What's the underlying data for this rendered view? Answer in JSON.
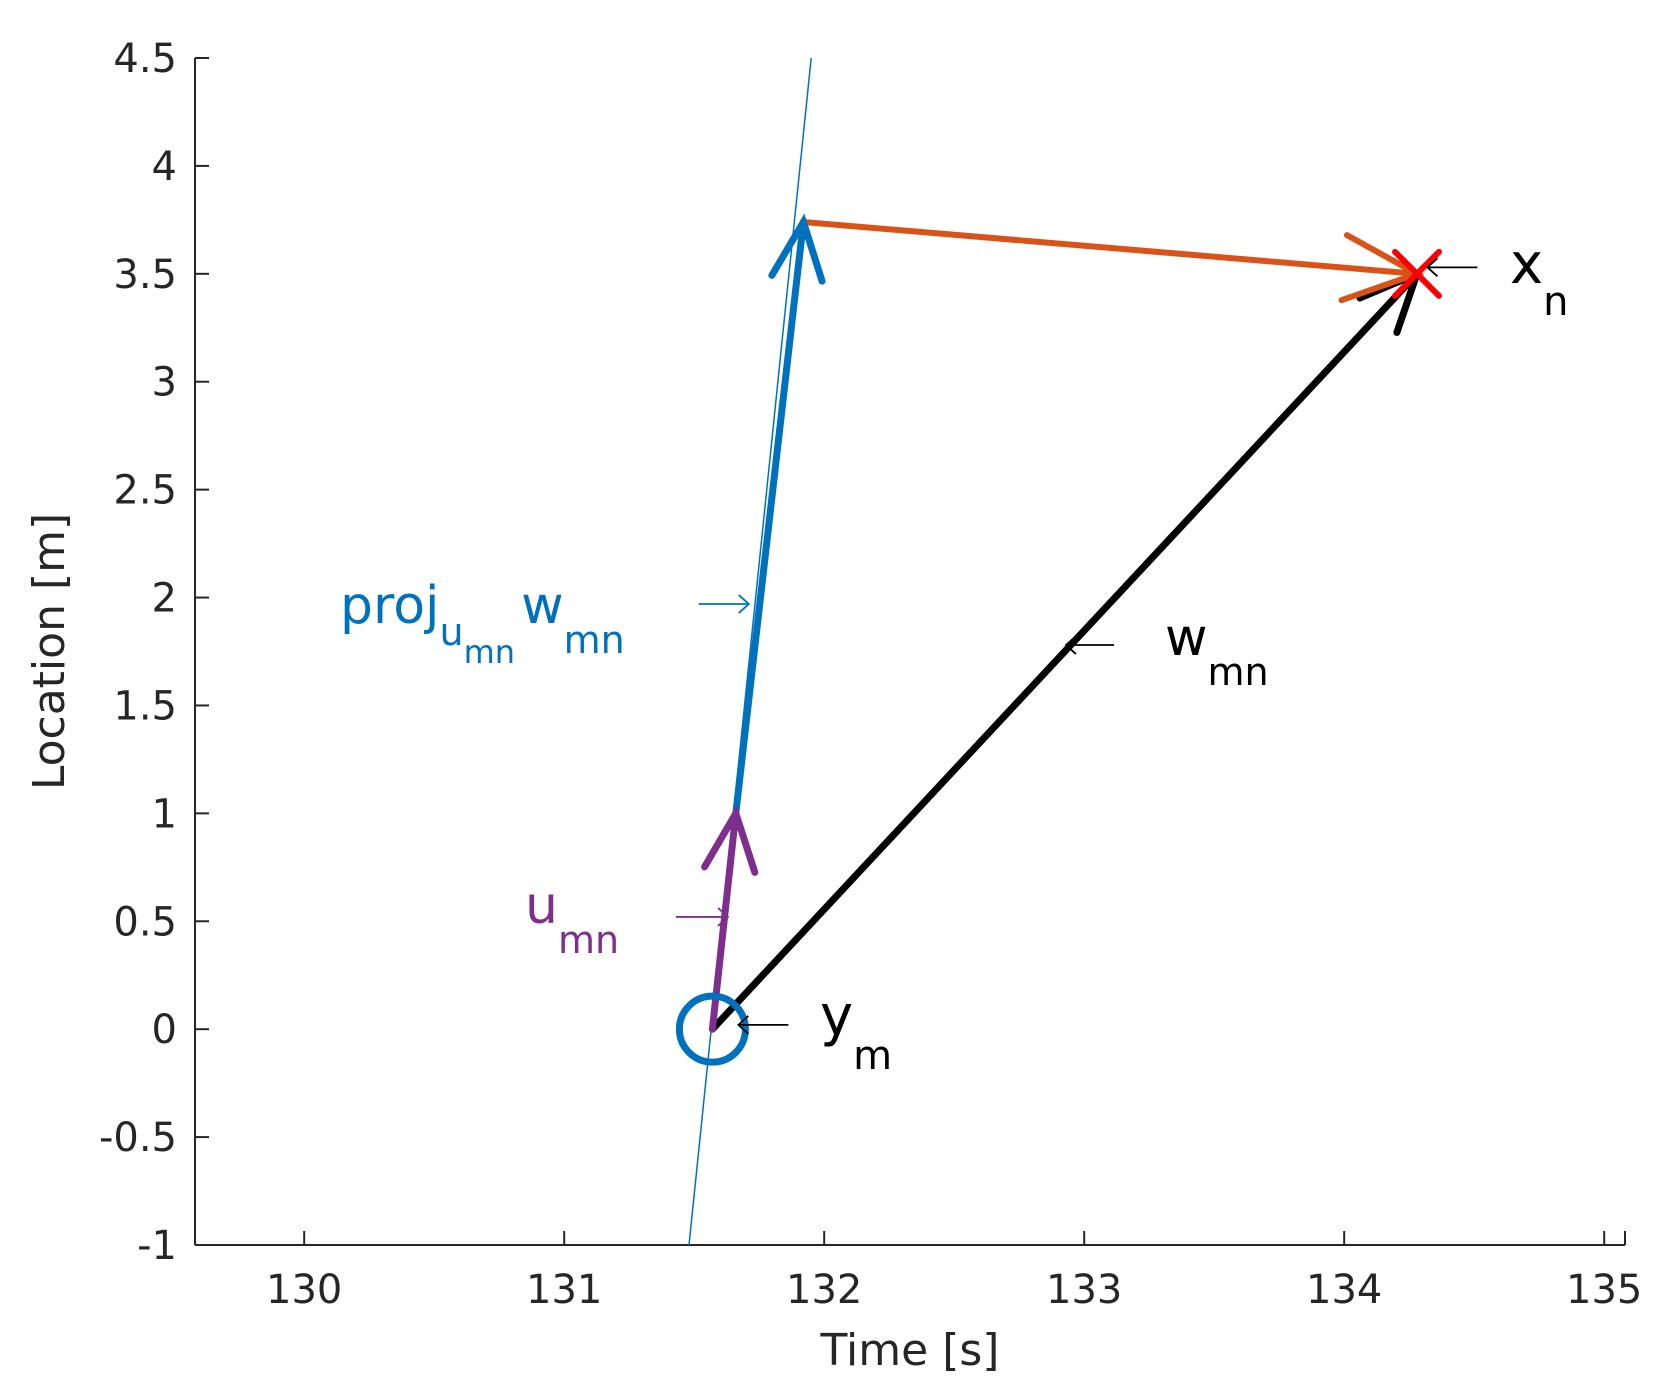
{
  "chart_data": {
    "type": "line",
    "xlabel": "Time [s]",
    "ylabel": "Location [m]",
    "xlim": [
      129.58,
      135.08
    ],
    "ylim": [
      -1,
      4.5
    ],
    "x_ticks": [
      "130",
      "131",
      "132",
      "133",
      "134",
      "135"
    ],
    "y_ticks": [
      "-1",
      "-0.5",
      "0",
      "0.5",
      "1",
      "1.5",
      "2",
      "2.5",
      "3",
      "3.5",
      "4",
      "4.5"
    ],
    "grid": false,
    "colors": {
      "line": "#0072bd",
      "proj": "#0072bd",
      "u": "#7e2f8e",
      "w": "#000000",
      "residual": "#d95319",
      "x_marker": "#ff0000",
      "axis": "#262626"
    },
    "reference_line": {
      "from": [
        131.48,
        -1
      ],
      "to": [
        131.95,
        4.5
      ]
    },
    "points": {
      "y_m": {
        "x": 131.57,
        "y": 0
      },
      "x_n": {
        "x": 134.28,
        "y": 3.5
      }
    },
    "vectors": {
      "u_mn": {
        "from": [
          131.57,
          0
        ],
        "to": [
          131.66,
          1.0
        ]
      },
      "proj": {
        "from": [
          131.66,
          1.0
        ],
        "to": [
          131.92,
          3.74
        ]
      },
      "w_mn": {
        "from": [
          131.57,
          0
        ],
        "to": [
          134.28,
          3.5
        ]
      },
      "residual": {
        "from": [
          131.92,
          3.74
        ],
        "to": [
          134.28,
          3.5
        ]
      }
    },
    "annotations": {
      "proj": {
        "main": "proj",
        "sub": "u",
        "subsub": "mn",
        "tail": "w",
        "tailsub": "mn",
        "arrow_tip": [
          131.71,
          1.97
        ]
      },
      "u": {
        "main": "u",
        "sub": "mn",
        "arrow_tip": [
          131.63,
          0.52
        ]
      },
      "w": {
        "main": "w",
        "sub": "mn",
        "arrow_tip": [
          132.93,
          1.78
        ]
      },
      "x": {
        "main": "x",
        "sub": "n",
        "arrow_tip": [
          134.32,
          3.53
        ]
      },
      "y": {
        "main": "y",
        "sub": "m",
        "arrow_tip": [
          131.67,
          0.02
        ]
      }
    }
  }
}
